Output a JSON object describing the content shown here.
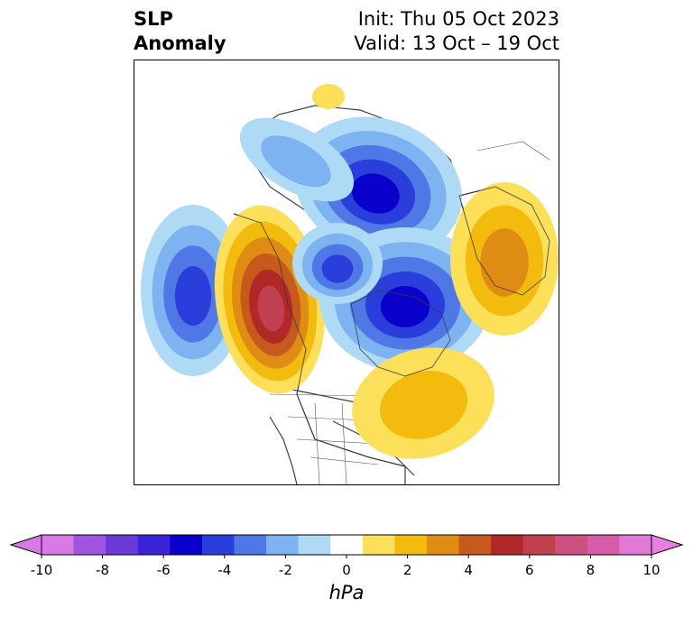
{
  "title": {
    "left_line1": "SLP",
    "left_line2": "Anomaly",
    "right_line1": "Init: Thu 05 Oct 2023",
    "right_line2": "Valid: 13 Oct – 19 Oct"
  },
  "colorbar": {
    "unit": "hPa",
    "ticks": [
      "-10",
      "-8",
      "-6",
      "-4",
      "-2",
      "0",
      "2",
      "4",
      "6",
      "8",
      "10"
    ],
    "colors": [
      "#d77ae6",
      "#a055e0",
      "#6a3ad8",
      "#3a22d6",
      "#0a00cc",
      "#2a3edc",
      "#4f78e6",
      "#7db3f0",
      "#aedaf6",
      "#ffffff",
      "#fce05a",
      "#f2bb0e",
      "#df8c14",
      "#c65a1c",
      "#b02828",
      "#c04050",
      "#cc5080",
      "#d45ca8",
      "#e07ad6"
    ],
    "extend_low_color": "#d77ae6",
    "extend_high_color": "#e87ee0"
  },
  "map": {
    "projection": "north-polar-stereographic",
    "field": "sea-level-pressure-anomaly",
    "features": [
      {
        "name": "negative-anomaly-north-pacific",
        "level": "-5"
      },
      {
        "name": "positive-anomaly-west-coast",
        "level": "+7"
      },
      {
        "name": "negative-anomaly-arctic",
        "level": "-6"
      },
      {
        "name": "negative-anomaly-greenland-baffin",
        "level": "-6"
      },
      {
        "name": "positive-anomaly-northwest-atlantic",
        "level": "+3"
      },
      {
        "name": "positive-anomaly-scandinavia",
        "level": "+4"
      },
      {
        "name": "positive-anomaly-siberia-top",
        "level": "+1"
      }
    ]
  }
}
